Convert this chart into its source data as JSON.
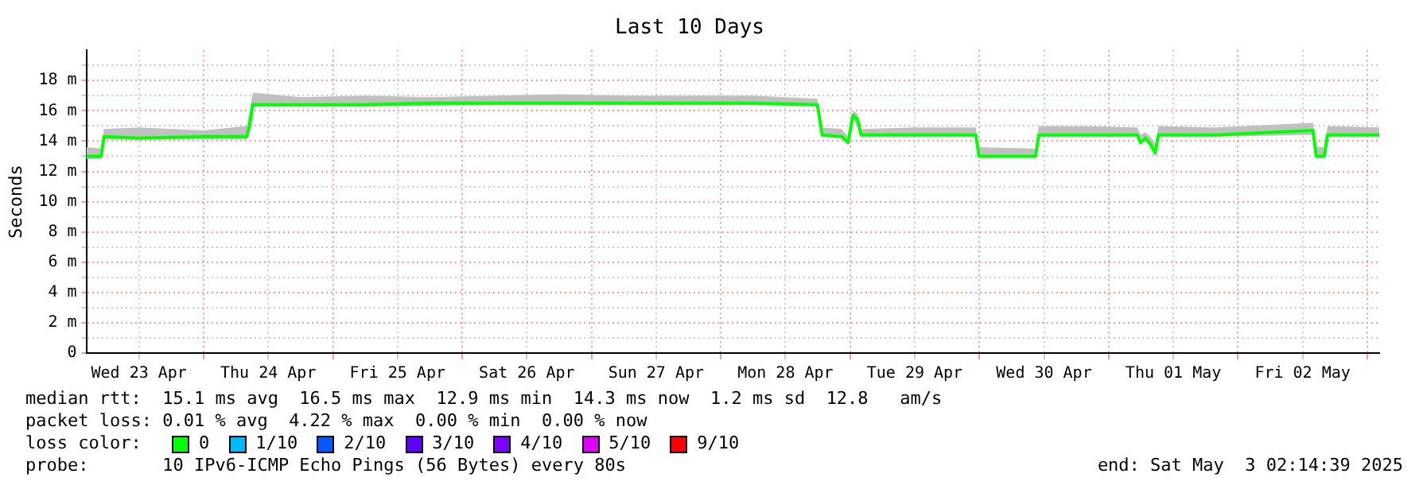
{
  "chart_data": {
    "type": "line",
    "title": "Last 10 Days",
    "ylabel": "Seconds",
    "x": [
      "2025-04-23T02:14",
      "2025-04-23T05:00",
      "2025-04-23T05:30",
      "2025-04-23T12:00",
      "2025-04-24T00:00",
      "2025-04-24T08:00",
      "2025-04-24T08:32",
      "2025-04-24T09:08",
      "2025-04-24T18:00",
      "2025-04-25T06:00",
      "2025-04-25T18:00",
      "2025-04-26T06:00",
      "2025-04-26T18:00",
      "2025-04-27T06:00",
      "2025-04-27T18:00",
      "2025-04-28T06:00",
      "2025-04-28T17:56",
      "2025-04-28T18:50",
      "2025-04-28T22:26",
      "2025-04-28T23:38",
      "2025-04-29T00:32",
      "2025-04-29T01:26",
      "2025-04-29T02:02",
      "2025-04-29T12:00",
      "2025-04-29T23:20",
      "2025-04-29T23:56",
      "2025-04-30T10:26",
      "2025-04-30T11:02",
      "2025-04-30T20:00",
      "2025-05-01T05:20",
      "2025-05-01T05:56",
      "2025-05-01T06:50",
      "2025-05-01T07:44",
      "2025-05-01T08:38",
      "2025-05-01T09:14",
      "2025-05-01T20:00",
      "2025-05-02T13:56",
      "2025-05-02T14:32",
      "2025-05-02T16:02",
      "2025-05-02T16:38",
      "2025-05-03T02:14"
    ],
    "series": [
      {
        "name": "0",
        "color": "#00ff00",
        "values": [
          13.0,
          13.0,
          14.3,
          14.2,
          14.3,
          14.3,
          15.0,
          16.4,
          16.4,
          16.4,
          16.5,
          16.5,
          16.5,
          16.5,
          16.5,
          16.5,
          16.4,
          14.4,
          14.3,
          13.9,
          15.7,
          15.4,
          14.4,
          14.4,
          14.4,
          13.0,
          13.0,
          14.4,
          14.4,
          14.4,
          13.9,
          14.2,
          13.8,
          13.2,
          14.4,
          14.4,
          14.7,
          13.0,
          13.0,
          14.4,
          14.4
        ],
        "lower": [
          12.8,
          12.8,
          14.1,
          14.1,
          14.1,
          14.1,
          14.8,
          16.3,
          16.3,
          16.3,
          16.3,
          16.4,
          16.4,
          16.4,
          16.4,
          16.4,
          16.3,
          14.3,
          14.2,
          13.8,
          15.4,
          15.0,
          14.3,
          14.3,
          14.3,
          12.9,
          12.9,
          14.3,
          14.3,
          14.3,
          13.8,
          14.0,
          13.7,
          13.1,
          14.3,
          14.3,
          14.4,
          12.9,
          12.9,
          14.3,
          14.3
        ],
        "upper": [
          13.6,
          13.5,
          14.8,
          14.9,
          14.7,
          15.0,
          16.0,
          17.2,
          16.9,
          17.0,
          16.9,
          17.0,
          17.1,
          17.0,
          17.0,
          17.0,
          16.8,
          14.9,
          14.8,
          14.3,
          16.0,
          15.8,
          14.8,
          14.9,
          14.9,
          13.6,
          13.5,
          15.0,
          15.0,
          14.9,
          14.4,
          14.6,
          14.3,
          13.8,
          15.0,
          14.9,
          15.2,
          13.6,
          13.6,
          15.0,
          14.9
        ]
      },
      {
        "name": "1/10",
        "color": "#00b8ff",
        "values": [
          null,
          null,
          null,
          null,
          null,
          null,
          null,
          null,
          null,
          null,
          null,
          null,
          null,
          null,
          null,
          null,
          null,
          null,
          null,
          null,
          null,
          null,
          null,
          null,
          null,
          null,
          null,
          null,
          null,
          null,
          null,
          null,
          null,
          null,
          null,
          null,
          null,
          null,
          null,
          null,
          null
        ]
      },
      {
        "name": "2/10",
        "color": "#0059ff",
        "values": [
          null,
          null,
          null,
          null,
          null,
          null,
          null,
          null,
          null,
          null,
          null,
          null,
          null,
          null,
          null,
          null,
          null,
          null,
          null,
          null,
          null,
          null,
          null,
          null,
          null,
          null,
          null,
          null,
          null,
          null,
          null,
          null,
          null,
          null,
          null,
          null,
          null,
          null,
          null,
          null,
          null
        ]
      },
      {
        "name": "3/10",
        "color": "#5e00ff",
        "values": [
          null,
          null,
          null,
          null,
          null,
          null,
          null,
          null,
          null,
          null,
          null,
          null,
          null,
          null,
          null,
          null,
          null,
          null,
          null,
          null,
          null,
          null,
          null,
          null,
          null,
          null,
          null,
          null,
          null,
          null,
          null,
          null,
          null,
          null,
          null,
          null,
          null,
          null,
          null,
          null,
          null
        ]
      },
      {
        "name": "4/10",
        "color": "#7e00ff",
        "values": [
          null,
          null,
          null,
          null,
          null,
          null,
          null,
          null,
          null,
          null,
          null,
          null,
          null,
          null,
          null,
          null,
          null,
          null,
          null,
          null,
          null,
          null,
          null,
          null,
          null,
          null,
          null,
          null,
          null,
          null,
          null,
          null,
          null,
          null,
          null,
          null,
          null,
          null,
          null,
          null,
          null
        ]
      },
      {
        "name": "5/10",
        "color": "#dd00ff",
        "values": [
          null,
          null,
          null,
          null,
          null,
          null,
          null,
          null,
          null,
          null,
          null,
          null,
          null,
          null,
          null,
          null,
          null,
          null,
          null,
          null,
          null,
          null,
          null,
          null,
          null,
          null,
          null,
          null,
          null,
          null,
          null,
          null,
          null,
          null,
          null,
          null,
          null,
          null,
          null,
          null,
          null
        ]
      },
      {
        "name": "9/10",
        "color": "#ff0000",
        "values": [
          null,
          null,
          null,
          null,
          null,
          null,
          null,
          null,
          null,
          null,
          null,
          null,
          null,
          null,
          null,
          null,
          null,
          null,
          null,
          null,
          null,
          null,
          null,
          null,
          null,
          null,
          null,
          null,
          null,
          null,
          null,
          null,
          null,
          null,
          null,
          null,
          null,
          null,
          null,
          null,
          null
        ]
      }
    ],
    "xlim": [
      "2025-04-23T02:14",
      "2025-05-03T02:14"
    ],
    "xticks": [
      {
        "value": "2025-04-23T12:00",
        "label": "Wed 23 Apr"
      },
      {
        "value": "2025-04-24T00:00",
        "label": null
      },
      {
        "value": "2025-04-24T12:00",
        "label": "Thu 24 Apr"
      },
      {
        "value": "2025-04-25T00:00",
        "label": null
      },
      {
        "value": "2025-04-25T12:00",
        "label": "Fri 25 Apr"
      },
      {
        "value": "2025-04-26T00:00",
        "label": null
      },
      {
        "value": "2025-04-26T12:00",
        "label": "Sat 26 Apr"
      },
      {
        "value": "2025-04-27T00:00",
        "label": null
      },
      {
        "value": "2025-04-27T12:00",
        "label": "Sun 27 Apr"
      },
      {
        "value": "2025-04-28T00:00",
        "label": null
      },
      {
        "value": "2025-04-28T12:00",
        "label": "Mon 28 Apr"
      },
      {
        "value": "2025-04-29T00:00",
        "label": null
      },
      {
        "value": "2025-04-29T12:00",
        "label": "Tue 29 Apr"
      },
      {
        "value": "2025-04-30T00:00",
        "label": null
      },
      {
        "value": "2025-04-30T12:00",
        "label": "Wed 30 Apr"
      },
      {
        "value": "2025-05-01T00:00",
        "label": null
      },
      {
        "value": "2025-05-01T12:00",
        "label": "Thu 01 May"
      },
      {
        "value": "2025-05-02T00:00",
        "label": null
      },
      {
        "value": "2025-05-02T12:00",
        "label": "Fri 02 May"
      },
      {
        "value": "2025-05-03T00:00",
        "label": null
      }
    ],
    "ylim": [
      0,
      20
    ],
    "yticks": [
      {
        "value": 0,
        "label": "0"
      },
      {
        "value": 1,
        "label": null
      },
      {
        "value": 2,
        "label": "2 m"
      },
      {
        "value": 3,
        "label": null
      },
      {
        "value": 4,
        "label": "4 m"
      },
      {
        "value": 5,
        "label": null
      },
      {
        "value": 6,
        "label": "6 m"
      },
      {
        "value": 7,
        "label": null
      },
      {
        "value": 8,
        "label": "8 m"
      },
      {
        "value": 9,
        "label": null
      },
      {
        "value": 10,
        "label": "10 m"
      },
      {
        "value": 11,
        "label": null
      },
      {
        "value": 12,
        "label": "12 m"
      },
      {
        "value": 13,
        "label": null
      },
      {
        "value": 14,
        "label": "14 m"
      },
      {
        "value": 15,
        "label": null
      },
      {
        "value": 16,
        "label": "16 m"
      },
      {
        "value": 17,
        "label": null
      },
      {
        "value": 18,
        "label": "18 m"
      },
      {
        "value": 19,
        "label": null
      }
    ],
    "grid": true,
    "legend": "bottom",
    "legend_title": "loss color:",
    "annotations": [
      "median rtt:  15.1 ms avg  16.5 ms max  12.9 ms min  14.3 ms now  1.2 ms sd  12.8   am/s",
      "packet loss: 0.01 % avg  4.22 % max  0.00 % min  0.00 % now",
      "probe:       10 IPv6-ICMP Echo Pings (56 Bytes) every 80s",
      "end: Sat May  3 02:14:39 2025"
    ]
  }
}
